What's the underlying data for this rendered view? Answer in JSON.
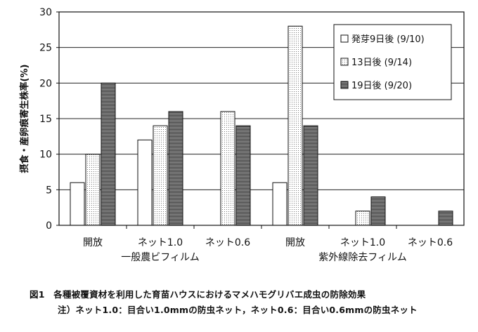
{
  "chart_data": {
    "type": "bar",
    "ylabel": "摂食・産卵痕寄生株率(%)",
    "ylim": [
      0,
      30
    ],
    "yticks": [
      0,
      5,
      10,
      15,
      20,
      25,
      30
    ],
    "grid": true,
    "legend_position": "top-right",
    "categories": [
      "開放",
      "ネット1.0",
      "ネット0.6",
      "開放",
      "ネット1.0",
      "ネット0.6"
    ],
    "groups": [
      {
        "label": "一般農ビフィルム",
        "span": [
          0,
          2
        ]
      },
      {
        "label": "紫外線除去フィルム",
        "span": [
          3,
          5
        ]
      }
    ],
    "series": [
      {
        "name": "発芽9日後 (9/10)",
        "values": [
          6,
          12,
          0,
          6,
          0,
          0
        ],
        "pattern": "plain",
        "color": "#ffffff"
      },
      {
        "name": "13日後 (9/14)",
        "values": [
          10,
          14,
          16,
          28,
          2,
          0
        ],
        "pattern": "dots",
        "color": "#f4f4f4"
      },
      {
        "name": "19日後 (9/20)",
        "values": [
          20,
          16,
          14,
          14,
          4,
          2
        ],
        "pattern": "hlines",
        "color": "#8c8c8c"
      }
    ]
  },
  "caption": {
    "title": "図1　各種被覆資材を利用した育苗ハウスにおけるマメハモグリバエ成虫の防除効果",
    "note": "注）ネット1.0：目合い1.0mmの防虫ネット，ネット0.6：目合い0.6mmの防虫ネット"
  }
}
